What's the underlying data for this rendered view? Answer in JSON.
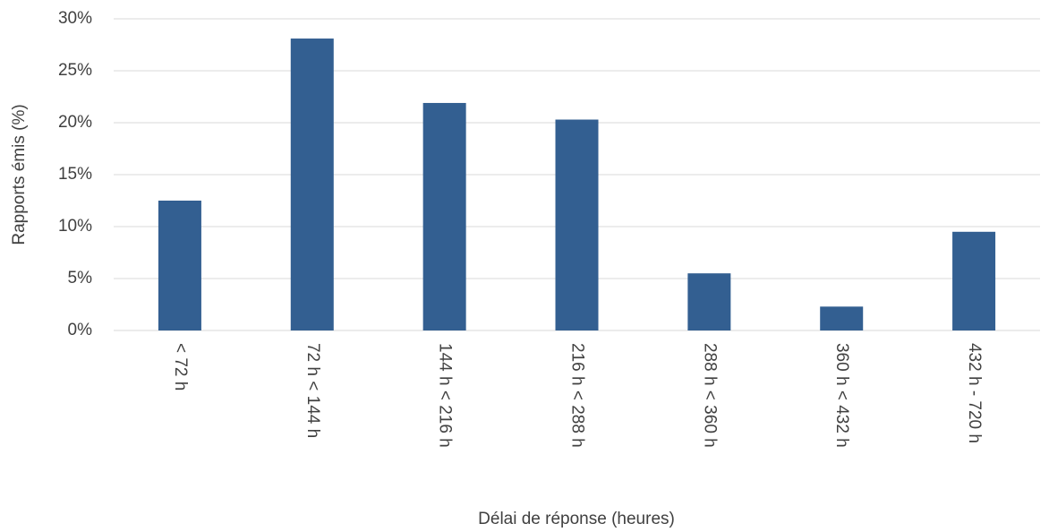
{
  "chart_data": {
    "type": "bar",
    "x_label": "Délai de réponse (heures)",
    "y_label": "Rapports émis (%)",
    "categories": [
      "< 72 h",
      "72 h < 144 h",
      "144 h < 216 h",
      "216 h < 288 h",
      "288 h < 360 h",
      "360 h < 432 h",
      "432 h - 720 h"
    ],
    "values": [
      12.5,
      28.1,
      21.9,
      20.3,
      5.5,
      2.3,
      9.5
    ],
    "color": "#335f91",
    "ylim": [
      0,
      30
    ],
    "yticks": [
      {
        "value": 0,
        "label": "0%"
      },
      {
        "value": 5,
        "label": "5%"
      },
      {
        "value": 10,
        "label": "10%"
      },
      {
        "value": 15,
        "label": "15%"
      },
      {
        "value": 20,
        "label": "20%"
      },
      {
        "value": 25,
        "label": "25%"
      },
      {
        "value": 30,
        "label": "30%"
      }
    ],
    "grid": true
  }
}
